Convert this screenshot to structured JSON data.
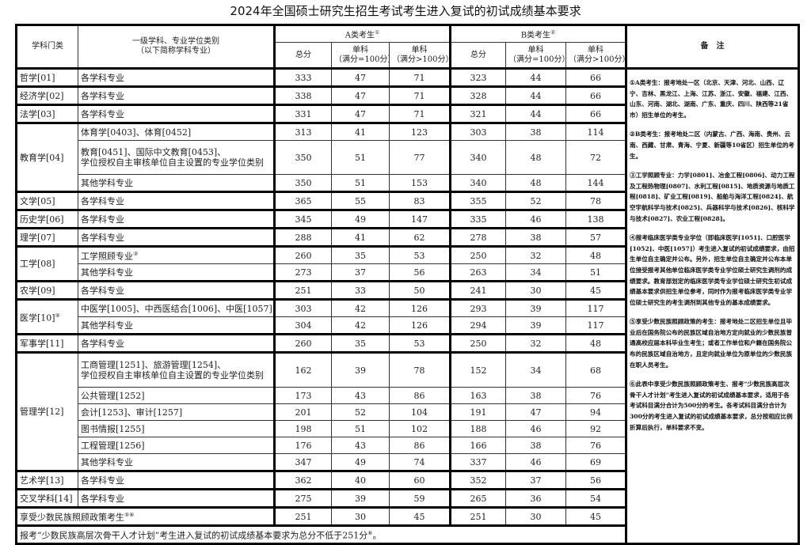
{
  "title": "2024年全国硕士研究生招生考试考生进入复试的初试成绩基本要求",
  "header": {
    "category": "学科门类",
    "major_line1": "一级学科、专业学位类别",
    "major_line2": "（以下简称学科专业）",
    "group_a": "A类考生",
    "group_a_sup": "①",
    "group_b": "B类考生",
    "group_b_sup": "②",
    "total": "总分",
    "single100_line1": "单科",
    "single100_line2": "（满分=100分）",
    "single_gt100_line1": "单科",
    "single_gt100_line2": "（满分>100分）",
    "notes": "备　注"
  },
  "groups": [
    {
      "category": "哲学[01]",
      "rows": [
        {
          "major": "各学科专业",
          "a": [
            "333",
            "47",
            "71"
          ],
          "b": [
            "323",
            "44",
            "66"
          ]
        }
      ]
    },
    {
      "category": "经济学[02]",
      "rows": [
        {
          "major": "各学科专业",
          "a": [
            "338",
            "47",
            "71"
          ],
          "b": [
            "328",
            "44",
            "66"
          ]
        }
      ]
    },
    {
      "category": "法学[03]",
      "rows": [
        {
          "major": "各学科专业",
          "a": [
            "331",
            "47",
            "71"
          ],
          "b": [
            "321",
            "44",
            "66"
          ]
        }
      ]
    },
    {
      "category": "教育学[04]",
      "rows": [
        {
          "major": "体育学[0403]、体育[0452]",
          "a": [
            "313",
            "41",
            "123"
          ],
          "b": [
            "303",
            "38",
            "114"
          ]
        },
        {
          "major": "教育[0451]、国际中文教育[0453]、",
          "major2": "学位授权自主审核单位自主设置的专业学位类别",
          "a": [
            "350",
            "51",
            "77"
          ],
          "b": [
            "340",
            "48",
            "72"
          ]
        },
        {
          "major": "其他学科专业",
          "a": [
            "350",
            "51",
            "153"
          ],
          "b": [
            "340",
            "48",
            "144"
          ]
        }
      ]
    },
    {
      "category": "文学[05]",
      "rows": [
        {
          "major": "各学科专业",
          "a": [
            "365",
            "55",
            "83"
          ],
          "b": [
            "355",
            "52",
            "78"
          ]
        }
      ]
    },
    {
      "category": "历史学[06]",
      "rows": [
        {
          "major": "各学科专业",
          "a": [
            "345",
            "49",
            "147"
          ],
          "b": [
            "335",
            "46",
            "138"
          ]
        }
      ]
    },
    {
      "category": "理学[07]",
      "rows": [
        {
          "major": "各学科专业",
          "a": [
            "288",
            "41",
            "62"
          ],
          "b": [
            "278",
            "38",
            "57"
          ]
        }
      ]
    },
    {
      "category": "工学[08]",
      "rows": [
        {
          "major": "工学照顾专业",
          "major_sup": "③",
          "a": [
            "260",
            "35",
            "53"
          ],
          "b": [
            "250",
            "32",
            "48"
          ]
        },
        {
          "major": "其他学科专业",
          "a": [
            "273",
            "37",
            "56"
          ],
          "b": [
            "263",
            "34",
            "51"
          ]
        }
      ]
    },
    {
      "category": "农学[09]",
      "rows": [
        {
          "major": "各学科专业",
          "a": [
            "251",
            "33",
            "50"
          ],
          "b": [
            "241",
            "30",
            "45"
          ]
        }
      ]
    },
    {
      "category": "医学[10]",
      "category_sup": "④",
      "rows": [
        {
          "major": "中医学[1005]、中西医结合[1006]、中医[1057]",
          "a": [
            "303",
            "42",
            "126"
          ],
          "b": [
            "293",
            "39",
            "117"
          ]
        },
        {
          "major": "其他学科专业",
          "a": [
            "304",
            "42",
            "126"
          ],
          "b": [
            "294",
            "39",
            "117"
          ]
        }
      ]
    },
    {
      "category": "军事学[11]",
      "rows": [
        {
          "major": "各学科专业",
          "a": [
            "260",
            "35",
            "53"
          ],
          "b": [
            "250",
            "32",
            "48"
          ]
        }
      ]
    },
    {
      "category": "管理学[12]",
      "rows": [
        {
          "major": "工商管理[1251]、旅游管理[1254]、",
          "major2": "学位授权自主审核单位自主设置的专业学位类别",
          "a": [
            "162",
            "39",
            "78"
          ],
          "b": [
            "152",
            "34",
            "68"
          ]
        },
        {
          "major": "公共管理[1252]",
          "a": [
            "173",
            "43",
            "86"
          ],
          "b": [
            "163",
            "38",
            "76"
          ]
        },
        {
          "major": "会计[1253]、审计[1257]",
          "a": [
            "201",
            "52",
            "104"
          ],
          "b": [
            "191",
            "47",
            "94"
          ]
        },
        {
          "major": "图书情报[1255]",
          "a": [
            "198",
            "51",
            "102"
          ],
          "b": [
            "188",
            "46",
            "92"
          ]
        },
        {
          "major": "工程管理[1256]",
          "a": [
            "176",
            "43",
            "86"
          ],
          "b": [
            "166",
            "38",
            "76"
          ]
        },
        {
          "major": "其他学科专业",
          "a": [
            "347",
            "49",
            "74"
          ],
          "b": [
            "337",
            "46",
            "69"
          ]
        }
      ]
    },
    {
      "category": "艺术学[13]",
      "rows": [
        {
          "major": "各学科专业",
          "a": [
            "362",
            "40",
            "60"
          ],
          "b": [
            "352",
            "37",
            "56"
          ]
        }
      ]
    },
    {
      "category": "交叉学科[14]",
      "rows": [
        {
          "major": "各学科专业",
          "a": [
            "275",
            "39",
            "59"
          ],
          "b": [
            "265",
            "36",
            "54"
          ]
        }
      ]
    }
  ],
  "minority": {
    "label": "享受少数民族照顾政策考生",
    "sup": "⑤⑥",
    "a": [
      "251",
      "30",
      "45"
    ],
    "b": [
      "251",
      "30",
      "45"
    ]
  },
  "footer": {
    "text": "报考“少数民族高层次骨干人才计划”考生进入复试的初试成绩基本要求为总分不低于251分",
    "sup": "⑥",
    "end": "。"
  },
  "notes": [
    "①A类考生：报考地处一区（北京、天津、河北、山西、辽宁、吉林、黑龙江、上海、江苏、浙江、安徽、福建、江西、山东、河南、湖北、湖南、广东、重庆、四川、陕西等21省市）招生单位的考生。",
    "②B类考生：报考地处二区（内蒙古、广西、海南、贵州、云南、西藏、甘肃、青海、宁夏、新疆等10省区）招生单位的考生。",
    "③工学照顾专业：力学[0801]、冶金工程[0806]、动力工程及工程热物理[0807]、水利工程[0815]、地质资源与地质工程[0818]、矿业工程[0819]、船舶与海洋工程[0824]、航空宇航科学与技术[0825]、兵器科学与技术[0826]、核科学与技术[0827]、农业工程[0828]。",
    "④报考临床医学类专业学位（即临床医学[1051]、口腔医学[1052]、中医[1057]）考生进入复试的初试成绩要求，由招生单位自主确定并公布。另外，招生单位自主确定并公布本单位接受报考其他单位临床医学类专业学位硕士研究生调剂的成绩要求。教育部划定的临床医学类专业学位硕士研究生初试成绩基本要求供招生单位参考，同时作为报考临床医学类专业学位硕士研究生的考生调剂到其他专业的基本成绩要求。",
    "⑤享受少数民族照顾政策的考生：报考地处二区招生单位且毕业后在国务院公布的民族区域自治地方定向就业的少数民族普通高校应届本科毕业生考生；或者工作单位和户籍在国务院公布的民族区域自治地方，且定向就业单位为原单位的少数民族在职人员考生。",
    "⑥此表中享受少数民族照顾政策考生、报考“少数民族高层次骨干人才计划”考生进入复试的初试成绩基本要求，适用于各考试科目满分合计为500分的考生。各考试科目满分合计为300分的考生进入复试的初试成绩基本要求，总分按相应比例折算后执行，单科要求不变。"
  ]
}
